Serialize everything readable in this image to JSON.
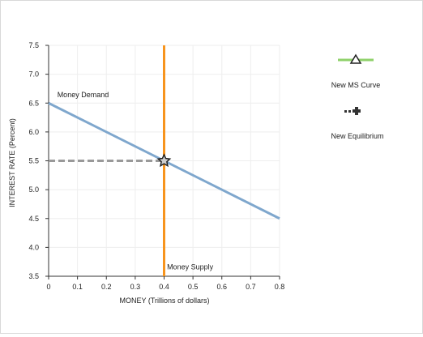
{
  "chart_data": {
    "type": "line",
    "xlabel": "MONEY (Trillions of dollars)",
    "ylabel": "INTEREST RATE (Percent)",
    "xlim": [
      0,
      0.8
    ],
    "ylim": [
      3.5,
      7.5
    ],
    "x_ticks": [
      "0",
      "0.1",
      "0.2",
      "0.3",
      "0.4",
      "0.5",
      "0.6",
      "0.7",
      "0.8"
    ],
    "y_ticks": [
      "3.5",
      "4.0",
      "4.5",
      "5.0",
      "5.5",
      "6.0",
      "6.5",
      "7.0",
      "7.5"
    ],
    "grid": true,
    "series": [
      {
        "name": "Money Demand",
        "color": "#7fa7cd",
        "style": "solid",
        "points": [
          [
            0,
            6.5
          ],
          [
            0.8,
            4.5
          ]
        ]
      },
      {
        "name": "Money Supply",
        "color": "#f7941d",
        "style": "solid",
        "points": [
          [
            0.4,
            3.5
          ],
          [
            0.4,
            7.5
          ]
        ]
      },
      {
        "name": "",
        "color": "#999999",
        "style": "dashed",
        "points": [
          [
            0,
            5.5
          ],
          [
            0.4,
            5.5
          ]
        ]
      }
    ],
    "annotations": [
      {
        "text": "Money Demand",
        "x": 0.03,
        "y": 6.6
      },
      {
        "text": "Money Supply",
        "x": 0.41,
        "y": 3.62
      }
    ],
    "equilibrium_point": {
      "x": 0.4,
      "y": 5.5
    }
  },
  "legend": {
    "items": [
      {
        "label": "New MS Curve",
        "icon": "line-triangle-icon",
        "color": "#8fd16a"
      },
      {
        "label": "New Equilibrium",
        "icon": "dashed-plus-icon",
        "color": "#333333"
      }
    ]
  }
}
